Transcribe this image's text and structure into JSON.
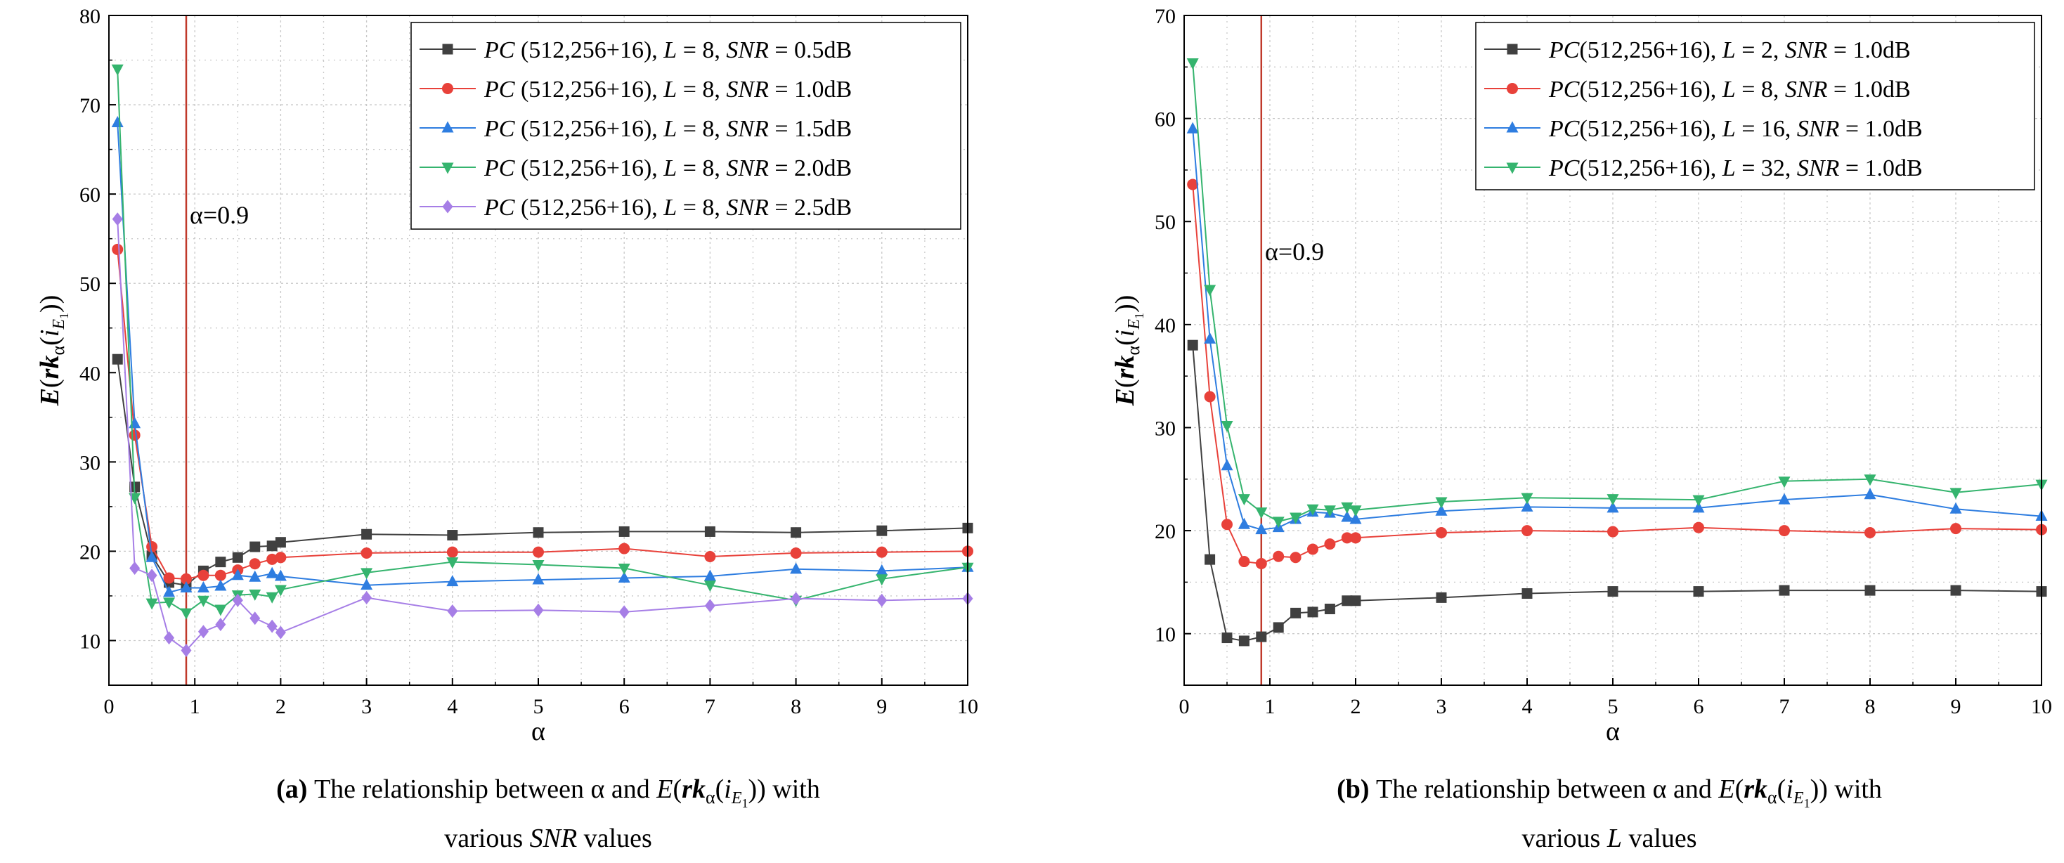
{
  "colors": {
    "s1": "#404040",
    "s2": "#e8413a",
    "s3": "#2e7de0",
    "s4": "#35b46e",
    "s5": "#a67ee6",
    "vline": "#c0392b"
  },
  "chart_data": [
    {
      "type": "line",
      "xlabel": "α",
      "ylabel": "E(rkα(iE1))",
      "xlim": [
        0,
        10
      ],
      "ylim": [
        5,
        80
      ],
      "xticks": [
        "0",
        "1",
        "2",
        "3",
        "4",
        "5",
        "6",
        "7",
        "8",
        "9",
        "10"
      ],
      "yticks": [
        "10",
        "20",
        "30",
        "40",
        "50",
        "60",
        "70",
        "80"
      ],
      "grid": true,
      "legend_position": "top-right",
      "annotation": "α=0.9",
      "vline_x": 0.9,
      "caption": {
        "tag": "(a)",
        "line1_a": "The relationship between  α and ",
        "line1_b": "E",
        "line1_c": "(",
        "line1_d": "rk",
        "line1_e": "α",
        "line1_f": "(",
        "line1_g": "i",
        "line1_h": "E",
        "line1_i": "1",
        "line1_j": ")) with",
        "line2_a": "various ",
        "line2_b": "SNR",
        "line2_c": " values"
      },
      "x": [
        0.1,
        0.3,
        0.5,
        0.7,
        0.9,
        1.1,
        1.3,
        1.5,
        1.7,
        1.9,
        2,
        3,
        4,
        5,
        6,
        7,
        8,
        9,
        10
      ],
      "series": [
        {
          "name": "PC (512,256+16),  L = 8,  SNR = 0.5dB",
          "legend": [
            "PC",
            " (512,256+16),  ",
            "L",
            " = 8,  ",
            "SNR",
            " = 0.5dB"
          ],
          "marker": "square",
          "color_key": "s1",
          "values": [
            41.5,
            27.2,
            19.5,
            16.5,
            16.2,
            17.8,
            18.8,
            19.3,
            20.5,
            20.6,
            21,
            21.9,
            21.8,
            22.1,
            22.2,
            22.2,
            22.1,
            22.3,
            22.6
          ]
        },
        {
          "name": "PC (512,256+16),  L = 8,  SNR = 1.0dB",
          "legend": [
            "PC",
            " (512,256+16),  ",
            "L",
            " = 8,  ",
            "SNR",
            " = 1.0dB"
          ],
          "marker": "circle",
          "color_key": "s2",
          "values": [
            53.8,
            33,
            20.5,
            17,
            16.9,
            17.3,
            17.3,
            17.9,
            18.6,
            19.1,
            19.3,
            19.8,
            19.9,
            19.9,
            20.3,
            19.4,
            19.8,
            19.9,
            20
          ]
        },
        {
          "name": "PC (512,256+16),  L = 8,  SNR = 1.5dB",
          "legend": [
            "PC",
            " (512,256+16),  ",
            "L",
            " = 8,  ",
            "SNR",
            " = 1.5dB"
          ],
          "marker": "triangle",
          "color_key": "s3",
          "values": [
            68,
            34.3,
            19.3,
            15.4,
            15.9,
            15.9,
            16.1,
            17.3,
            17.1,
            17.5,
            17.2,
            16.2,
            16.6,
            16.8,
            17,
            17.2,
            18,
            17.8,
            18.2
          ]
        },
        {
          "name": "PC (512,256+16),  L = 8,  SNR = 2.0dB",
          "legend": [
            "PC",
            " (512,256+16),  ",
            "L",
            " = 8,  ",
            "SNR",
            " = 2.0dB"
          ],
          "marker": "triangle-down",
          "color_key": "s4",
          "values": [
            74,
            26,
            14.2,
            14.3,
            13.1,
            14.5,
            13.5,
            15.1,
            15.2,
            14.9,
            15.7,
            17.6,
            18.8,
            18.5,
            18.1,
            16.2,
            14.5,
            16.9,
            18.2
          ]
        },
        {
          "name": "PC (512,256+16),  L = 8,  SNR = 2.5dB",
          "legend": [
            "PC",
            " (512,256+16),  ",
            "L",
            " = 8,  ",
            "SNR",
            " = 2.5dB"
          ],
          "marker": "diamond",
          "color_key": "s5",
          "values": [
            57.2,
            18.1,
            17.3,
            10.3,
            8.9,
            11,
            11.8,
            14.5,
            12.5,
            11.6,
            10.9,
            14.8,
            13.3,
            13.4,
            13.2,
            13.9,
            14.7,
            14.5,
            14.7
          ]
        }
      ]
    },
    {
      "type": "line",
      "xlabel": "α",
      "ylabel": "E(rkα(iE1))",
      "xlim": [
        0,
        10
      ],
      "ylim": [
        5,
        70
      ],
      "xticks": [
        "0",
        "1",
        "2",
        "3",
        "4",
        "5",
        "6",
        "7",
        "8",
        "9",
        "10"
      ],
      "yticks": [
        "10",
        "20",
        "30",
        "40",
        "50",
        "60",
        "70"
      ],
      "grid": true,
      "legend_position": "top-right",
      "annotation": "α=0.9",
      "vline_x": 0.9,
      "caption": {
        "tag": "(b)",
        "line1_a": "The relationship between  α and ",
        "line1_b": "E",
        "line1_c": "(",
        "line1_d": "rk",
        "line1_e": "α",
        "line1_f": "(",
        "line1_g": "i",
        "line1_h": "E",
        "line1_i": "1",
        "line1_j": ")) with",
        "line2_a": "various ",
        "line2_b": "L",
        "line2_c": " values"
      },
      "x": [
        0.1,
        0.3,
        0.5,
        0.7,
        0.9,
        1.1,
        1.3,
        1.5,
        1.7,
        1.9,
        2,
        3,
        4,
        5,
        6,
        7,
        8,
        9,
        10
      ],
      "series": [
        {
          "name": "PC(512,256+16),  L = 2,  SNR = 1.0dB",
          "legend": [
            "PC",
            "(512,256+16),  ",
            "L",
            " = 2,  ",
            "SNR",
            " = 1.0dB"
          ],
          "marker": "square",
          "color_key": "s1",
          "values": [
            38,
            17.2,
            9.6,
            9.3,
            9.7,
            10.6,
            12,
            12.1,
            12.4,
            13.2,
            13.2,
            13.5,
            13.9,
            14.1,
            14.1,
            14.2,
            14.2,
            14.2,
            14.1
          ]
        },
        {
          "name": "PC(512,256+16),  L = 8,  SNR = 1.0dB",
          "legend": [
            "PC",
            "(512,256+16),  ",
            "L",
            " = 8,  ",
            "SNR",
            " = 1.0dB"
          ],
          "marker": "circle",
          "color_key": "s2",
          "values": [
            53.6,
            33,
            20.6,
            17,
            16.8,
            17.5,
            17.4,
            18.2,
            18.7,
            19.3,
            19.3,
            19.8,
            20,
            19.9,
            20.3,
            20,
            19.8,
            20.2,
            20.1
          ]
        },
        {
          "name": "PC(512,256+16),  L = 16,  SNR = 1.0dB",
          "legend": [
            "PC",
            "(512,256+16),  ",
            "L",
            " = 16,  ",
            "SNR",
            " = 1.0dB"
          ],
          "marker": "triangle",
          "color_key": "s3",
          "values": [
            59,
            38.6,
            26.3,
            20.6,
            20.1,
            20.3,
            21.1,
            21.8,
            21.7,
            21.3,
            21.1,
            21.9,
            22.3,
            22.2,
            22.2,
            23,
            23.5,
            22.1,
            21.4
          ]
        },
        {
          "name": "PC(512,256+16),  L = 32,  SNR = 1.0dB",
          "legend": [
            "PC",
            "(512,256+16),  ",
            "L",
            " = 32,  ",
            "SNR",
            " = 1.0dB"
          ],
          "marker": "triangle-down",
          "color_key": "s4",
          "values": [
            65.4,
            43.4,
            30.2,
            23.1,
            21.8,
            20.9,
            21.3,
            22.1,
            22,
            22.3,
            22,
            22.8,
            23.2,
            23.1,
            23,
            24.8,
            25,
            23.7,
            24.5
          ]
        }
      ]
    }
  ]
}
